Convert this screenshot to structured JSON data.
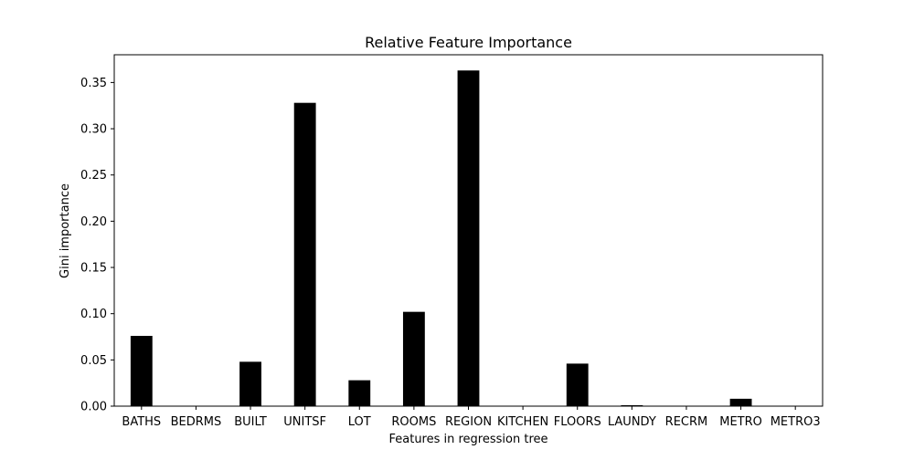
{
  "chart_data": {
    "type": "bar",
    "title": "Relative Feature Importance",
    "xlabel": "Features in regression tree",
    "ylabel": "Gini importance",
    "categories": [
      "BATHS",
      "BEDRMS",
      "BUILT",
      "UNITSF",
      "LOT",
      "ROOMS",
      "REGION",
      "KITCHEN",
      "FLOORS",
      "LAUNDY",
      "RECRM",
      "METRO",
      "METRO3"
    ],
    "values": [
      0.076,
      0.0,
      0.048,
      0.328,
      0.028,
      0.102,
      0.363,
      0.0,
      0.046,
      0.001,
      0.0,
      0.008,
      0.0
    ],
    "ylim": [
      0,
      0.38
    ],
    "yticks": [
      0.0,
      0.05,
      0.1,
      0.15,
      0.2,
      0.25,
      0.3,
      0.35
    ],
    "ytick_labels": [
      "0.00",
      "0.05",
      "0.10",
      "0.15",
      "0.20",
      "0.25",
      "0.30",
      "0.35"
    ],
    "bar_color": "#000000",
    "grid": false,
    "legend": "none"
  }
}
